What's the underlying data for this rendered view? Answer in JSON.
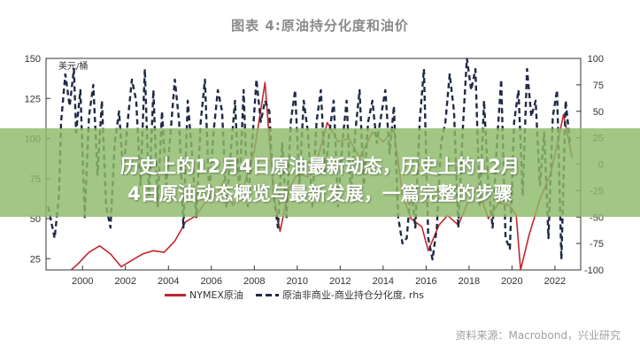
{
  "chart_title": "图表 4:原油持分化度和油价",
  "banner": {
    "line1": "历史上的12月4日原油最新动态，历史上的12月",
    "line2": "4日原油动态概览与最新发展，一篇完整的步骤"
  },
  "source": "资料来源：Macrobond，兴业研究",
  "chart_data": {
    "type": "line",
    "left_axis_unit": "美元/桶",
    "x_tick_labels": [
      "2000",
      "2002",
      "2004",
      "2006",
      "2008",
      "2010",
      "2012",
      "2014",
      "2016",
      "2018",
      "2020",
      "2022"
    ],
    "x_range": [
      1998.3,
      2023.2
    ],
    "y_left": {
      "ticks": [
        25,
        50,
        75,
        100,
        125,
        150
      ],
      "range": [
        18,
        150
      ]
    },
    "y_right": {
      "ticks": [
        -100,
        -75,
        -50,
        -25,
        0,
        25,
        50,
        75,
        100
      ],
      "range": [
        -100,
        100
      ]
    },
    "grid": false,
    "legend_position": "bottom",
    "series": [
      {
        "name": "NYMEX原油",
        "axis": "left",
        "style": "solid",
        "color": "#c1272d",
        "x": [
          1998.4,
          1998.9,
          1999.3,
          1999.8,
          2000.3,
          2000.8,
          2001.3,
          2001.8,
          2002.3,
          2002.8,
          2003.3,
          2003.8,
          2004.3,
          2004.8,
          2005.3,
          2005.8,
          2006.3,
          2006.6,
          2007.0,
          2007.5,
          2008.0,
          2008.5,
          2008.9,
          2009.2,
          2009.6,
          2010.0,
          2010.5,
          2011.0,
          2011.4,
          2011.9,
          2012.4,
          2012.9,
          2013.5,
          2014.0,
          2014.5,
          2014.9,
          2015.3,
          2015.8,
          2016.1,
          2016.6,
          2017.0,
          2017.5,
          2018.0,
          2018.4,
          2018.9,
          2019.4,
          2019.9,
          2020.2,
          2020.4,
          2020.8,
          2021.3,
          2021.8,
          2022.2,
          2022.4,
          2022.8
        ],
        "y": [
          15,
          12,
          16,
          22,
          29,
          33,
          28,
          20,
          24,
          28,
          30,
          29,
          36,
          48,
          52,
          62,
          66,
          74,
          58,
          70,
          92,
          135,
          65,
          42,
          68,
          78,
          76,
          90,
          110,
          98,
          100,
          88,
          104,
          98,
          105,
          65,
          50,
          45,
          30,
          46,
          52,
          46,
          62,
          70,
          50,
          60,
          58,
          52,
          18,
          40,
          62,
          78,
          102,
          115,
          88
        ]
      },
      {
        "name": "原油非商业-商业持仓分化度, rhs",
        "axis": "right",
        "style": "dashed",
        "color": "#1f2a44",
        "x": [
          1998.4,
          1998.7,
          1998.9,
          1999.0,
          1999.2,
          1999.4,
          1999.6,
          1999.7,
          1999.9,
          2000.1,
          2000.3,
          2000.5,
          2000.7,
          2000.9,
          2001.1,
          2001.3,
          2001.5,
          2001.7,
          2001.9,
          2002.1,
          2002.3,
          2002.5,
          2002.7,
          2002.9,
          2003.1,
          2003.3,
          2003.5,
          2003.7,
          2003.9,
          2004.1,
          2004.3,
          2004.5,
          2004.7,
          2004.9,
          2005.1,
          2005.3,
          2005.5,
          2005.7,
          2005.9,
          2006.1,
          2006.3,
          2006.5,
          2006.7,
          2006.9,
          2007.1,
          2007.3,
          2007.5,
          2007.7,
          2007.9,
          2008.1,
          2008.3,
          2008.5,
          2008.7,
          2008.9,
          2009.1,
          2009.3,
          2009.5,
          2009.7,
          2009.9,
          2010.1,
          2010.3,
          2010.5,
          2010.7,
          2010.9,
          2011.1,
          2011.3,
          2011.5,
          2011.7,
          2011.9,
          2012.1,
          2012.3,
          2012.5,
          2012.7,
          2012.9,
          2013.1,
          2013.3,
          2013.5,
          2013.7,
          2013.9,
          2014.1,
          2014.3,
          2014.5,
          2014.7,
          2014.9,
          2015.1,
          2015.3,
          2015.5,
          2015.7,
          2015.9,
          2016.1,
          2016.3,
          2016.5,
          2016.7,
          2016.9,
          2017.1,
          2017.3,
          2017.5,
          2017.7,
          2017.9,
          2018.1,
          2018.3,
          2018.5,
          2018.7,
          2018.9,
          2019.1,
          2019.3,
          2019.5,
          2019.7,
          2019.9,
          2020.1,
          2020.3,
          2020.5,
          2020.7,
          2020.9,
          2021.1,
          2021.3,
          2021.5,
          2021.7,
          2021.9,
          2022.1,
          2022.3,
          2022.5,
          2022.7
        ],
        "y": [
          -40,
          -70,
          -30,
          40,
          85,
          55,
          90,
          30,
          70,
          -50,
          45,
          75,
          -10,
          60,
          -40,
          -60,
          20,
          50,
          -10,
          40,
          80,
          60,
          -20,
          90,
          -30,
          70,
          -40,
          50,
          -20,
          30,
          80,
          40,
          -60,
          60,
          10,
          -50,
          40,
          80,
          -30,
          30,
          70,
          50,
          -40,
          10,
          60,
          -30,
          70,
          -40,
          20,
          80,
          40,
          60,
          50,
          -30,
          -60,
          20,
          -50,
          40,
          70,
          -20,
          60,
          30,
          -40,
          40,
          70,
          -10,
          30,
          60,
          -40,
          20,
          60,
          -30,
          30,
          70,
          -20,
          40,
          60,
          20,
          45,
          70,
          10,
          55,
          -50,
          -75,
          -70,
          -20,
          -60,
          40,
          90,
          -70,
          -90,
          -60,
          20,
          40,
          85,
          50,
          -60,
          30,
          100,
          70,
          90,
          -40,
          60,
          -20,
          -60,
          20,
          80,
          -70,
          -80,
          40,
          70,
          -30,
          90,
          45,
          60,
          -20,
          30,
          -70,
          45,
          70,
          -90,
          60,
          20
        ]
      }
    ]
  }
}
